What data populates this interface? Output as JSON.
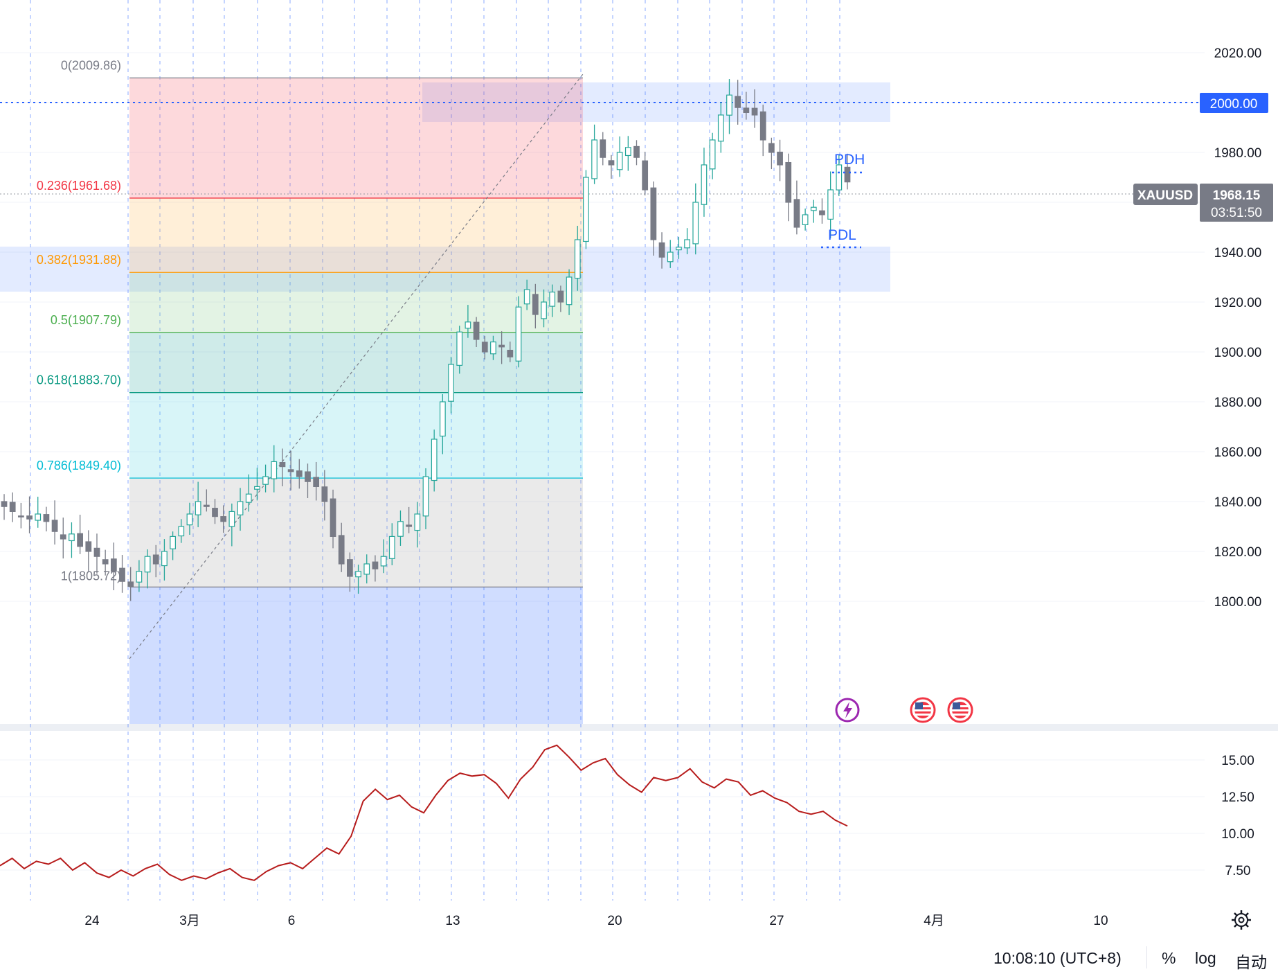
{
  "symbol": "XAUUSD",
  "price": {
    "current": 1968.15,
    "current_label": "1968.15",
    "countdown": "03:51:50",
    "alert_level": 2000.0,
    "alert_label": "2000.00"
  },
  "price_axis": {
    "labels": [
      "2020.00",
      "1980.00",
      "1940.00",
      "1920.00",
      "1900.00",
      "1880.00",
      "1860.00",
      "1840.00",
      "1820.00",
      "1800.00"
    ],
    "values": [
      2020,
      1980,
      1940,
      1920,
      1900,
      1880,
      1860,
      1840,
      1820,
      1800
    ]
  },
  "indicator_axis": {
    "labels": [
      "15.00",
      "12.50",
      "10.00",
      "7.50"
    ],
    "values": [
      15,
      12.5,
      10,
      7.5
    ]
  },
  "time_axis": {
    "labels": [
      "24",
      "3月",
      "6",
      "13",
      "20",
      "27",
      "4月",
      "10"
    ]
  },
  "fibonacci": {
    "levels": [
      {
        "ratio": 0,
        "price": 2009.86,
        "label": "0(2009.86)",
        "color": "#787b86"
      },
      {
        "ratio": 0.236,
        "price": 1961.68,
        "label": "0.236(1961.68)",
        "color": "#f23645"
      },
      {
        "ratio": 0.382,
        "price": 1931.88,
        "label": "0.382(1931.88)",
        "color": "#ff9800"
      },
      {
        "ratio": 0.5,
        "price": 1907.79,
        "label": "0.5(1907.79)",
        "color": "#4caf50"
      },
      {
        "ratio": 0.618,
        "price": 1883.7,
        "label": "0.618(1883.70)",
        "color": "#089981"
      },
      {
        "ratio": 0.786,
        "price": 1849.4,
        "label": "0.786(1849.40)",
        "color": "#00bcd4"
      },
      {
        "ratio": 1,
        "price": 1805.72,
        "label": "1(1805.72)",
        "color": "#787b86"
      }
    ]
  },
  "zones": {
    "resistance": {
      "top": 2007,
      "bottom": 1993
    },
    "support": {
      "top": 1950,
      "bottom": 1934
    }
  },
  "markers": {
    "pdh_label": "PDH",
    "pdl_label": "PDL",
    "pdh_price": 1974,
    "pdl_price": 1949
  },
  "events": {
    "icons": [
      "lightning-event-icon",
      "us-flag-icon",
      "us-flag-icon"
    ]
  },
  "colors": {
    "up": "#26a69a",
    "down": "#787b86",
    "accent": "#2962ff",
    "indicator_line": "#b71c1c"
  },
  "status_bar": {
    "time": "10:08:10 (UTC+8)",
    "percent": "%",
    "log": "log",
    "auto": "自动"
  },
  "chart_data": {
    "type": "candlestick",
    "price_series": [
      1838,
      1836,
      1834,
      1833,
      1835,
      1832,
      1828,
      1825,
      1827,
      1822,
      1820,
      1818,
      1815,
      1812,
      1808,
      1806,
      1812,
      1818,
      1815,
      1820,
      1826,
      1830,
      1835,
      1840,
      1838,
      1834,
      1832,
      1836,
      1840,
      1843,
      1846,
      1850,
      1856,
      1854,
      1852,
      1850,
      1848,
      1846,
      1840,
      1826,
      1815,
      1810,
      1812,
      1815,
      1813,
      1818,
      1826,
      1832,
      1830,
      1835,
      1850,
      1865,
      1880,
      1895,
      1908,
      1912,
      1905,
      1900,
      1904,
      1902,
      1898,
      1918,
      1925,
      1915,
      1920,
      1924,
      1920,
      1930,
      1945,
      1970,
      1985,
      1978,
      1975,
      1980,
      1982,
      1978,
      1965,
      1945,
      1938,
      1940,
      1942,
      1945,
      1960,
      1975,
      1985,
      1995,
      2003,
      1998,
      1996,
      1995,
      1985,
      1980,
      1975,
      1960,
      1950,
      1955,
      1958,
      1955,
      1965,
      1975,
      1968.15
    ],
    "indicator_series": [
      7.8,
      8.3,
      7.6,
      8.1,
      7.9,
      8.3,
      7.5,
      8.0,
      7.3,
      7.0,
      7.5,
      7.1,
      7.6,
      7.9,
      7.2,
      6.8,
      7.1,
      6.9,
      7.3,
      7.6,
      7.0,
      6.8,
      7.4,
      7.8,
      8.0,
      7.6,
      8.3,
      9.0,
      8.6,
      9.8,
      12.2,
      13.0,
      12.3,
      12.6,
      11.8,
      11.4,
      12.6,
      13.6,
      14.1,
      13.9,
      14.0,
      13.4,
      12.4,
      13.7,
      14.5,
      15.7,
      16.0,
      15.2,
      14.3,
      14.8,
      15.1,
      14.0,
      13.3,
      12.8,
      13.8,
      13.6,
      13.8,
      14.4,
      13.5,
      13.1,
      13.7,
      13.5,
      12.6,
      12.9,
      12.4,
      12.1,
      11.5,
      11.3,
      11.5,
      10.9,
      10.5
    ],
    "ylim": [
      1785,
      2033
    ],
    "indicator_ylim": [
      5,
      17
    ]
  }
}
